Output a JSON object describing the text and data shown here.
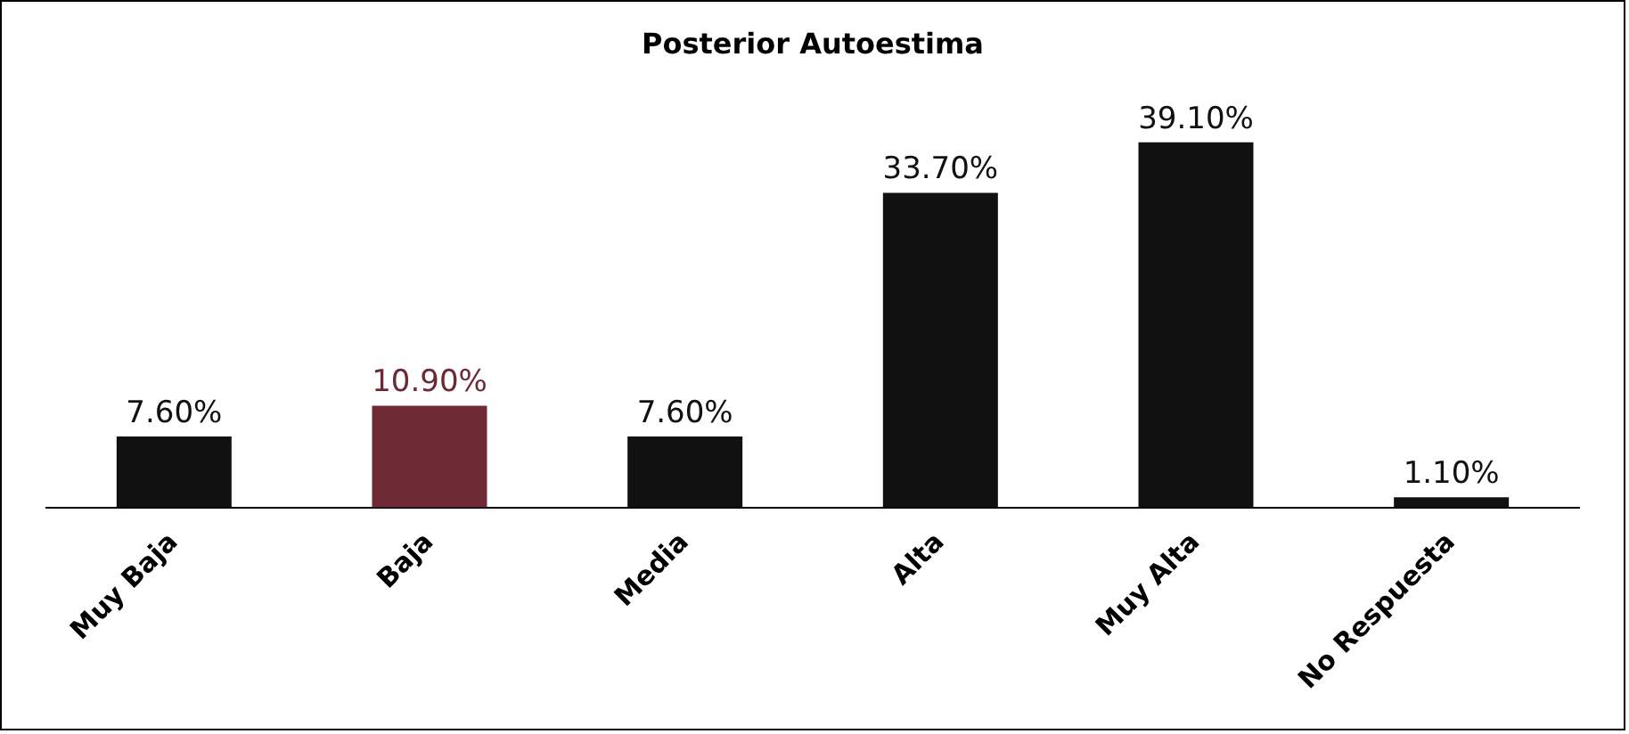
{
  "chart_data": {
    "type": "bar",
    "title": "Posterior Autoestima",
    "categories": [
      "Muy Baja",
      "Baja",
      "Media",
      "Alta",
      "Muy Alta",
      "No Respuesta"
    ],
    "values": [
      7.6,
      10.9,
      7.6,
      33.7,
      39.1,
      1.1
    ],
    "colors": [
      "#111111",
      "#6e2a34",
      "#111111",
      "#111111",
      "#111111",
      "#111111"
    ],
    "value_labels": [
      "7.60%",
      "10.90%",
      "7.60%",
      "33.70%",
      "39.10%",
      "1.10%"
    ],
    "grid": false,
    "legend": false
  }
}
